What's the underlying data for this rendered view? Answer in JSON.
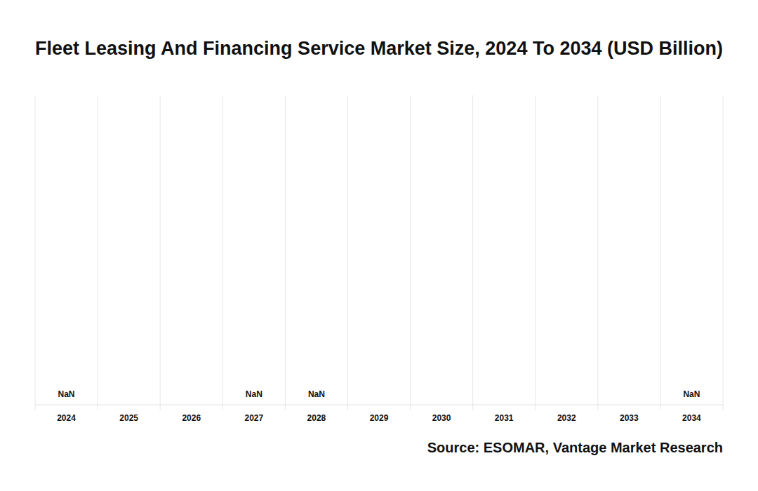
{
  "chart_data": {
    "type": "bar",
    "title": "Fleet Leasing And Financing Service Market Size, 2024 To 2034 (USD Billion)",
    "source": "Source: ESOMAR, Vantage Market Research",
    "categories": [
      "2024",
      "2025",
      "2026",
      "2027",
      "2028",
      "2029",
      "2030",
      "2031",
      "2032",
      "2033",
      "2034"
    ],
    "values": [
      null,
      null,
      null,
      null,
      null,
      null,
      null,
      null,
      null,
      null,
      null
    ],
    "value_labels": [
      "NaN",
      null,
      null,
      "NaN",
      "NaN",
      null,
      null,
      null,
      null,
      null,
      "NaN"
    ],
    "data_labels": true,
    "tick_labels": "x",
    "grid": true,
    "color": "#4472c4"
  }
}
